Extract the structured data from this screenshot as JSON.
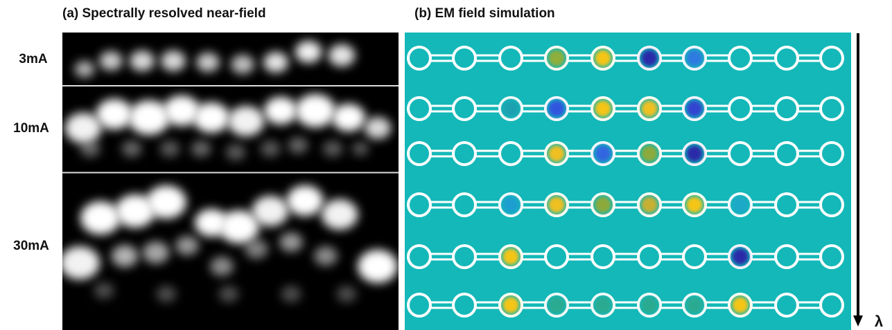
{
  "panel_a": {
    "title": "(a) Spectrally resolved near-field",
    "rows": [
      "3mA",
      "10mA",
      "30mA"
    ]
  },
  "panel_b": {
    "title": "(b) EM field simulation",
    "axis_label": "λ"
  }
}
